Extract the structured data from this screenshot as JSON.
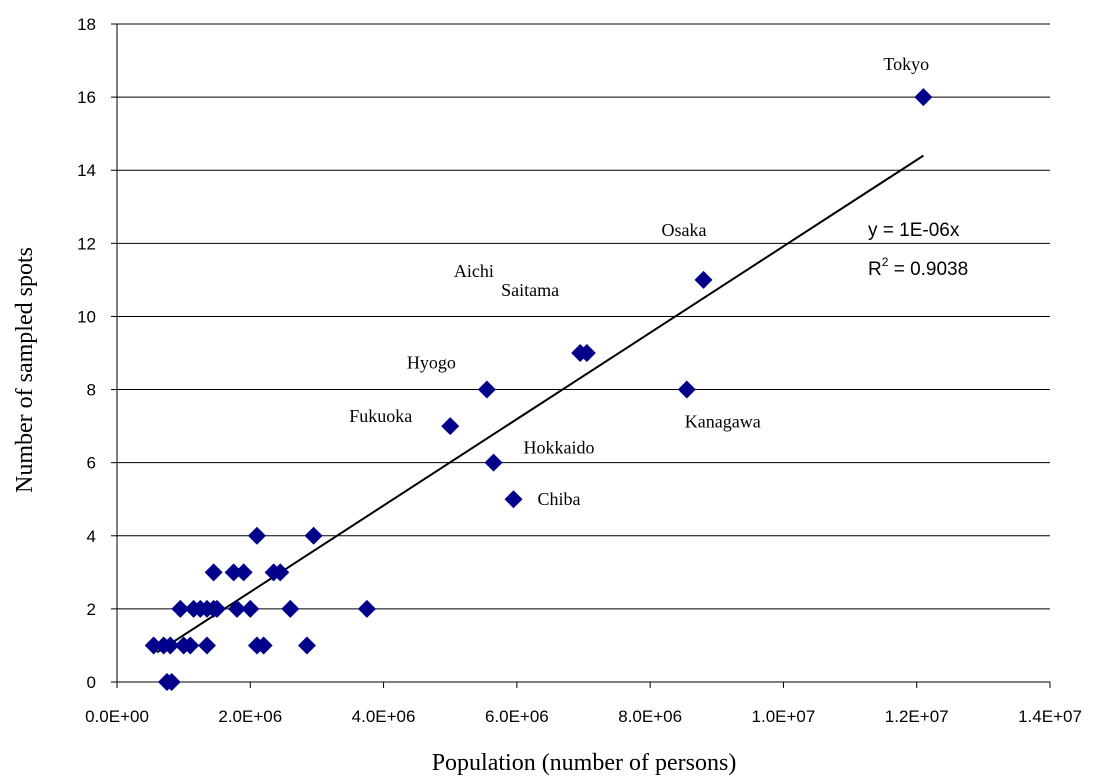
{
  "chart_data": {
    "type": "scatter",
    "xlabel": "Population (number of persons)",
    "ylabel": "Number of sampled spots",
    "xlim": [
      0,
      14000000
    ],
    "ylim": [
      0,
      18
    ],
    "x_ticks": [
      "0.0E+00",
      "2.0E+06",
      "4.0E+06",
      "6.0E+06",
      "8.0E+06",
      "1.0E+07",
      "1.2E+07",
      "1.4E+07"
    ],
    "x_tick_values": [
      0,
      2000000,
      4000000,
      6000000,
      8000000,
      10000000,
      12000000,
      14000000
    ],
    "y_ticks": [
      "0",
      "2",
      "4",
      "6",
      "8",
      "10",
      "12",
      "14",
      "16",
      "18"
    ],
    "y_tick_values": [
      0,
      2,
      4,
      6,
      8,
      10,
      12,
      14,
      16,
      18
    ],
    "gridlines": "horizontal",
    "marker": "diamond",
    "marker_color": "#00008b",
    "points": [
      {
        "x": 12100000,
        "y": 16,
        "label": "Tokyo"
      },
      {
        "x": 8800000,
        "y": 11,
        "label": "Osaka"
      },
      {
        "x": 7050000,
        "y": 9,
        "label": "Aichi"
      },
      {
        "x": 6950000,
        "y": 9,
        "label": "Saitama"
      },
      {
        "x": 8550000,
        "y": 8,
        "label": "Kanagawa"
      },
      {
        "x": 5550000,
        "y": 8,
        "label": "Hyogo"
      },
      {
        "x": 5000000,
        "y": 7,
        "label": "Fukuoka"
      },
      {
        "x": 5650000,
        "y": 6,
        "label": "Hokkaido"
      },
      {
        "x": 5950000,
        "y": 5,
        "label": "Chiba"
      },
      {
        "x": 2100000,
        "y": 4
      },
      {
        "x": 2950000,
        "y": 4
      },
      {
        "x": 1450000,
        "y": 3
      },
      {
        "x": 1750000,
        "y": 3
      },
      {
        "x": 1900000,
        "y": 3
      },
      {
        "x": 2350000,
        "y": 3
      },
      {
        "x": 2450000,
        "y": 3
      },
      {
        "x": 950000,
        "y": 2
      },
      {
        "x": 1150000,
        "y": 2
      },
      {
        "x": 1250000,
        "y": 2
      },
      {
        "x": 1350000,
        "y": 2
      },
      {
        "x": 1450000,
        "y": 2
      },
      {
        "x": 1500000,
        "y": 2
      },
      {
        "x": 1800000,
        "y": 2
      },
      {
        "x": 2000000,
        "y": 2
      },
      {
        "x": 2600000,
        "y": 2
      },
      {
        "x": 3750000,
        "y": 2
      },
      {
        "x": 550000,
        "y": 1
      },
      {
        "x": 700000,
        "y": 1
      },
      {
        "x": 800000,
        "y": 1
      },
      {
        "x": 1000000,
        "y": 1
      },
      {
        "x": 1100000,
        "y": 1
      },
      {
        "x": 1350000,
        "y": 1
      },
      {
        "x": 2100000,
        "y": 1
      },
      {
        "x": 2200000,
        "y": 1
      },
      {
        "x": 2850000,
        "y": 1
      },
      {
        "x": 750000,
        "y": 0
      },
      {
        "x": 820000,
        "y": 0
      }
    ],
    "trendline": {
      "type": "linear",
      "x_range": [
        600000,
        12100000
      ],
      "slope": 1.1818e-06,
      "intercept": 0.1
    },
    "equation_text": "y = 1E-06x",
    "r2_prefix": "R",
    "r2_exponent": "2",
    "r2_value": " = 0.9038"
  }
}
